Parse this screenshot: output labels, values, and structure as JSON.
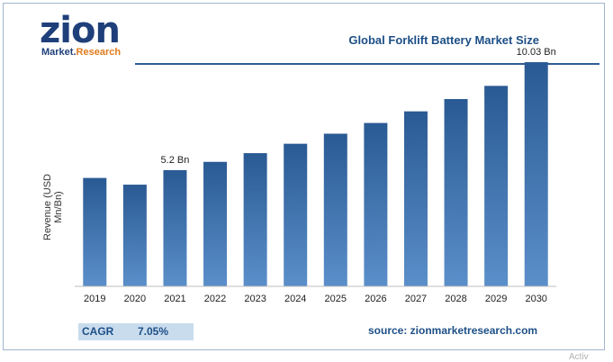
{
  "logo": {
    "main": "zion",
    "sub_a": "Market.",
    "sub_b": "Research"
  },
  "chart_data": {
    "type": "bar",
    "title": "Global Forklift Battery Market Size",
    "ylabel": "Revenue (USD Mn/Bn)",
    "xlabel": "",
    "categories": [
      "2019",
      "2020",
      "2021",
      "2022",
      "2023",
      "2024",
      "2025",
      "2026",
      "2027",
      "2028",
      "2029",
      "2030"
    ],
    "values": [
      4.85,
      4.55,
      5.2,
      5.57,
      5.96,
      6.38,
      6.83,
      7.31,
      7.83,
      8.38,
      8.97,
      10.03
    ],
    "ylim": [
      0,
      11.2
    ],
    "annotations": [
      {
        "category": "2021",
        "text": "5.2 Bn"
      },
      {
        "category": "2030",
        "text": "10.03 Bn"
      }
    ],
    "bar_color_top": "#2a5a93",
    "bar_color_bottom": "#5b8fca",
    "grid": false,
    "legend": "none"
  },
  "footer": {
    "cagr_label": "CAGR",
    "cagr_value": "7.05%",
    "source": "source: zionmarketresearch.com"
  },
  "watermark": "Activ"
}
